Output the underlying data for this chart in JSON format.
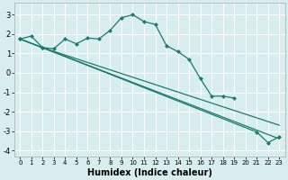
{
  "xlabel": "Humidex (Indice chaleur)",
  "bg_color": "#d8eeee",
  "grid_color": "#ffffff",
  "line_color": "#1a7a6e",
  "markersize": 2.5,
  "xlim": [
    -0.5,
    23.5
  ],
  "ylim": [
    -4.3,
    3.6
  ],
  "xticks": [
    0,
    1,
    2,
    3,
    4,
    5,
    6,
    7,
    8,
    9,
    10,
    11,
    12,
    13,
    14,
    15,
    16,
    17,
    18,
    19,
    20,
    21,
    22,
    23
  ],
  "yticks": [
    -4,
    -3,
    -2,
    -1,
    0,
    1,
    2,
    3
  ],
  "line1_x": [
    0,
    1,
    2,
    3,
    4,
    5,
    6,
    7,
    8,
    9,
    10,
    11,
    12,
    13,
    14,
    15,
    16,
    17,
    18,
    19
  ],
  "line1_y": [
    1.75,
    1.9,
    1.3,
    1.25,
    1.75,
    1.5,
    1.8,
    1.75,
    2.2,
    2.85,
    3.0,
    2.65,
    2.5,
    1.4,
    1.1,
    0.7,
    -0.3,
    -1.2,
    -1.2,
    -1.3
  ],
  "line2_x": [
    0,
    2,
    23
  ],
  "line2_y": [
    1.75,
    1.3,
    -2.7
  ],
  "line3_x": [
    0,
    2,
    23
  ],
  "line3_y": [
    1.75,
    1.3,
    -3.4
  ],
  "line4_x": [
    0,
    2,
    21,
    22,
    23
  ],
  "line4_y": [
    1.75,
    1.3,
    -3.05,
    -3.6,
    -3.3
  ]
}
